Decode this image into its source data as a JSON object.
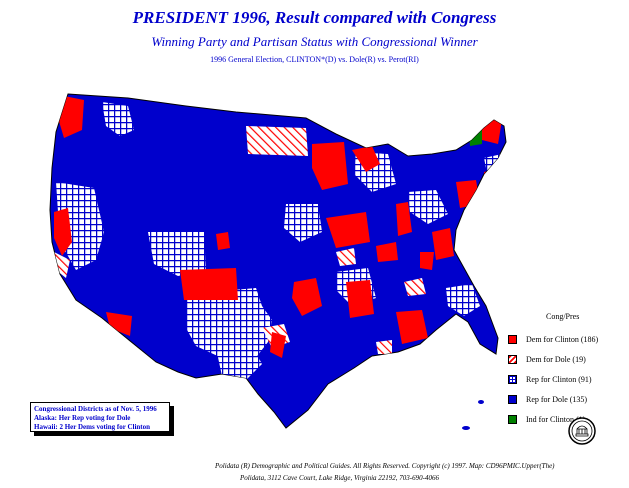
{
  "title": "PRESIDENT 1996, Result compared with Congress",
  "subtitle": "Winning Party and Partisan Status with Congressional Winner",
  "subsubtitle": "1996 General Election, CLINTON*(D) vs. Dole(R) vs. Perot(RI)",
  "legend": {
    "title": "Cong/Pres",
    "items": [
      {
        "label": "Dem for Clinton (186)",
        "pattern": "solid-red",
        "color": "#ff0000"
      },
      {
        "label": "Dem for Dole (19)",
        "pattern": "hatch-red",
        "color": "#ff0000"
      },
      {
        "label": "Rep for Clinton (91)",
        "pattern": "check-blue",
        "color": "#0000cc"
      },
      {
        "label": "Rep for Dole (135)",
        "pattern": "solid-blue",
        "color": "#0000cc"
      },
      {
        "label": "Ind for Clinton (1)",
        "pattern": "solid-green",
        "color": "#008000"
      }
    ]
  },
  "note": {
    "line1": "Congressional Districts as of Nov. 5, 1996",
    "line2": "Alaska: Her Rep voting for Dole",
    "line3": "Hawaii: 2 Her Dems voting for Clinton"
  },
  "footer": {
    "line1": "Polidata (R) Demographic and Political Guides. All Rights Reserved. Copyright (c) 1997. Map: CD96PMIC.Upper(The)",
    "line2": "Polidata, 3112 Cave Court, Lake Ridge, Virginia 22192, 703-690-4066"
  }
}
